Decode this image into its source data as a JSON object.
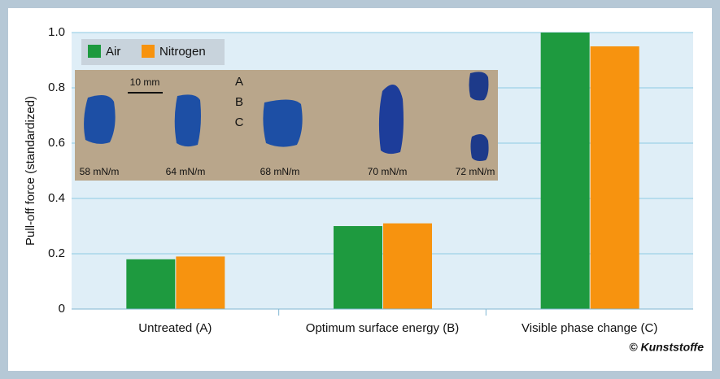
{
  "chart_data": {
    "type": "bar",
    "y_label": "Pull-off force (standardized)",
    "categories": [
      "Untreated (A)",
      "Optimum surface energy (B)",
      "Visible phase change (C)"
    ],
    "series": [
      {
        "name": "Air",
        "color": "#1e9a3f",
        "values": [
          0.18,
          0.3,
          1.0
        ]
      },
      {
        "name": "Nitrogen",
        "color": "#f7930f",
        "values": [
          0.19,
          0.31,
          0.95
        ]
      }
    ],
    "ylim": [
      0,
      1.0
    ],
    "yticks": [
      0,
      0.2,
      0.4,
      0.6,
      0.8,
      {
        "value": 1.0,
        "label": "1.0"
      }
    ],
    "grid": true,
    "legend": "top-left",
    "inset": {
      "scale": "10 mm",
      "labels": [
        "A",
        "B",
        "C"
      ],
      "samples": [
        "58 mN/m",
        "64 mN/m",
        "68 mN/m",
        "70 mN/m",
        "72 mN/m"
      ]
    },
    "credit": "© Kunststoffe"
  }
}
